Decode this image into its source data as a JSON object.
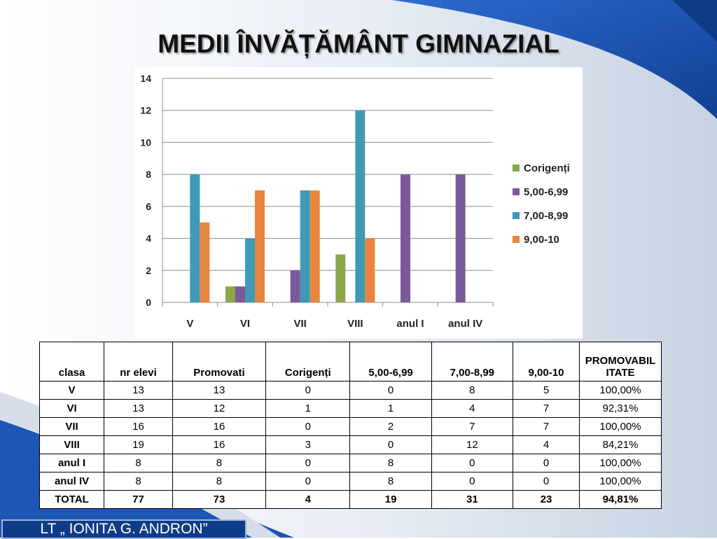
{
  "slide": {
    "title": "MEDII ÎNVĂȚĂMÂNT GIMNAZIAL",
    "footer": "LT „ IONITA G. ANDRON”"
  },
  "chart_data": {
    "type": "bar",
    "categories": [
      "V",
      "VI",
      "VII",
      "VIII",
      "anul I",
      "anul IV"
    ],
    "series": [
      {
        "name": "Corigenți",
        "color": "#8aa84a",
        "values": [
          0,
          1,
          0,
          3,
          0,
          0
        ]
      },
      {
        "name": "5,00-6,99",
        "color": "#7b5a9a",
        "values": [
          0,
          1,
          2,
          0,
          8,
          8
        ]
      },
      {
        "name": "7,00-8,99",
        "color": "#3f9bb5",
        "values": [
          8,
          4,
          7,
          12,
          0,
          0
        ]
      },
      {
        "name": "9,00-10",
        "color": "#e8853e",
        "values": [
          5,
          7,
          7,
          4,
          0,
          0
        ]
      }
    ],
    "ylim": [
      0,
      14
    ],
    "yticks": [
      "0",
      "2",
      "4",
      "6",
      "8",
      "10",
      "12",
      "14"
    ],
    "grid": true,
    "legend_position": "right"
  },
  "table": {
    "headers": [
      "clasa",
      "nr elevi",
      "Promovati",
      "Corigenți",
      "5,00-6,99",
      "7,00-8,99",
      "9,00-10",
      "PROMOVABIL ITATE"
    ],
    "rows": [
      [
        "V",
        "13",
        "13",
        "0",
        "0",
        "8",
        "5",
        "100,00%"
      ],
      [
        "VI",
        "13",
        "12",
        "1",
        "1",
        "4",
        "7",
        "92,31%"
      ],
      [
        "VII",
        "16",
        "16",
        "0",
        "2",
        "7",
        "7",
        "100,00%"
      ],
      [
        "VIII",
        "19",
        "16",
        "3",
        "0",
        "12",
        "4",
        "84,21%"
      ],
      [
        "anul I",
        "8",
        "8",
        "0",
        "8",
        "0",
        "0",
        "100,00%"
      ],
      [
        "anul IV",
        "8",
        "8",
        "0",
        "8",
        "0",
        "0",
        "100,00%"
      ],
      [
        "TOTAL",
        "77",
        "73",
        "4",
        "19",
        "31",
        "23",
        "94,81%"
      ]
    ]
  }
}
